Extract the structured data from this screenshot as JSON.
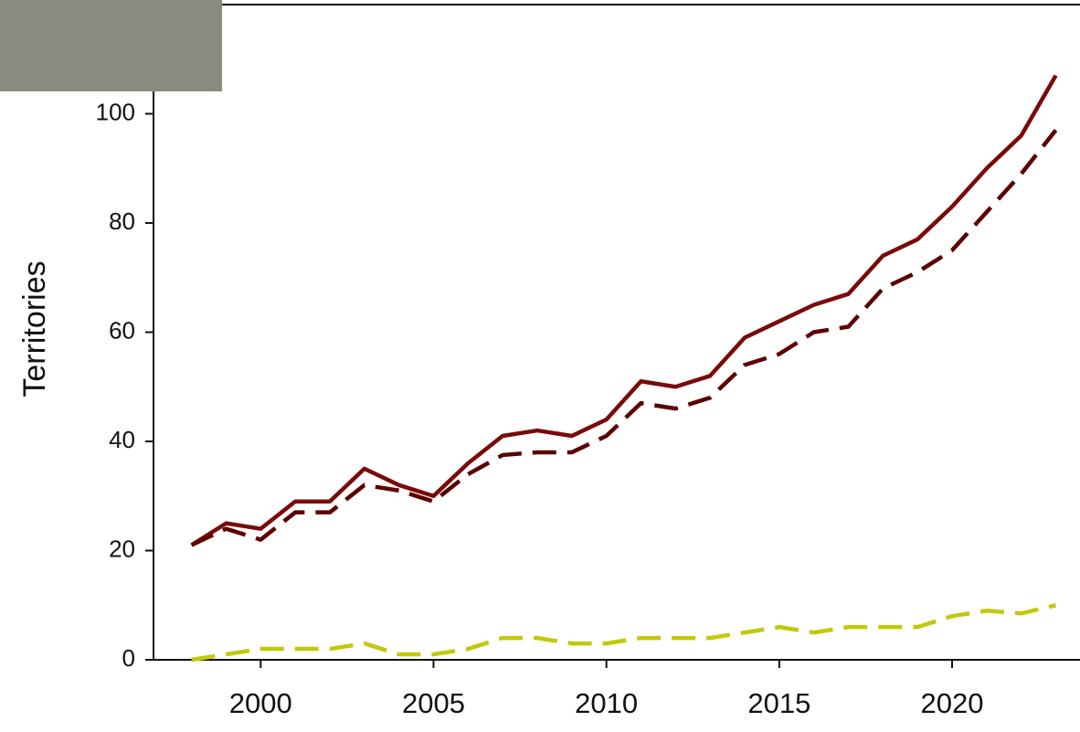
{
  "chart_data": {
    "type": "line",
    "y_label": "Territories",
    "x": [
      1998,
      1999,
      2000,
      2001,
      2002,
      2003,
      2004,
      2005,
      2006,
      2007,
      2008,
      2009,
      2010,
      2011,
      2012,
      2013,
      2014,
      2015,
      2016,
      2017,
      2018,
      2019,
      2020,
      2021,
      2022,
      2023
    ],
    "series": [
      {
        "color": "#7a0a0a",
        "style": "solid",
        "values": [
          21,
          25,
          24,
          29,
          29,
          35,
          32,
          30,
          36,
          41,
          42,
          41,
          44,
          51,
          50,
          52,
          59,
          62,
          65,
          67,
          74,
          77,
          83,
          90,
          96,
          107
        ]
      },
      {
        "color": "#5c0000",
        "style": "dashed",
        "values": [
          21,
          24,
          22,
          27,
          27,
          32,
          31,
          29,
          34,
          37.5,
          38,
          38,
          41,
          47,
          46,
          48,
          54,
          56,
          60,
          61,
          68,
          71,
          75,
          82,
          89,
          97
        ]
      },
      {
        "color": "#c3c80a",
        "style": "dashed",
        "values": [
          0,
          1,
          2,
          2,
          2,
          3,
          1,
          1,
          2,
          4,
          4,
          3,
          3,
          4,
          4,
          4,
          5,
          6,
          5,
          6,
          6,
          6,
          8,
          9,
          8.5,
          10
        ]
      }
    ],
    "xlim": [
      1996.9,
      2023.7
    ],
    "ylim": [
      0,
      120
    ],
    "xticks": [
      2000,
      2005,
      2010,
      2015,
      2020
    ],
    "yticks": [
      0,
      20,
      40,
      60,
      80,
      100
    ]
  }
}
